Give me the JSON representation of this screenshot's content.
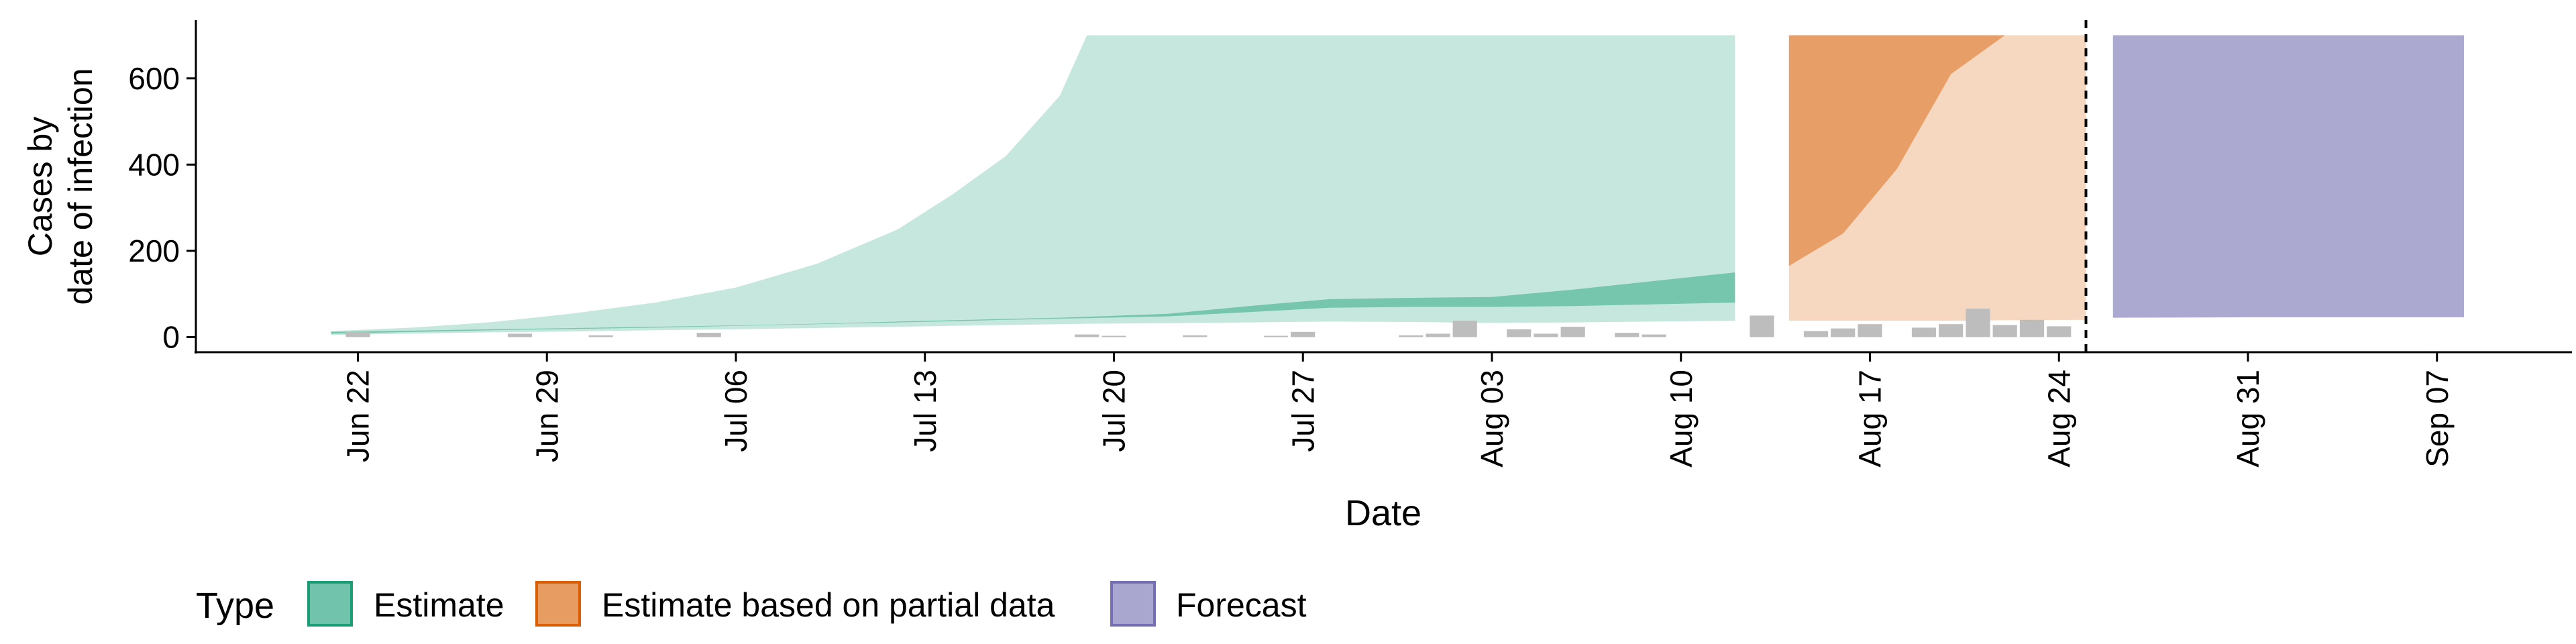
{
  "chart_data": {
    "type": "area",
    "xlabel": "Date",
    "ylabel_lines": [
      "Cases by",
      "date of infection"
    ],
    "x_ticks": [
      "Jun 22",
      "Jun 29",
      "Jul 06",
      "Jul 13",
      "Jul 20",
      "Jul 27",
      "Aug 03",
      "Aug 10",
      "Aug 17",
      "Aug 24",
      "Aug 31",
      "Sep 07"
    ],
    "x_tick_dates": [
      "2020-06-22",
      "2020-06-29",
      "2020-07-06",
      "2020-07-13",
      "2020-07-20",
      "2020-07-27",
      "2020-08-03",
      "2020-08-10",
      "2020-08-17",
      "2020-08-24",
      "2020-08-31",
      "2020-09-07"
    ],
    "xlim": [
      "2020-06-16",
      "2020-09-12"
    ],
    "y_ticks": [
      0,
      200,
      400,
      600
    ],
    "ylim": [
      -35,
      735
    ],
    "cap": 700,
    "forecast_date": "2020-08-25",
    "grid": false,
    "legend": {
      "title": "Type",
      "position": "bottom",
      "entries": [
        {
          "label": "Estimate",
          "color": "#1b9e77"
        },
        {
          "label": "Estimate based on partial data",
          "color": "#d95f02"
        },
        {
          "label": "Forecast",
          "color": "#7570b3"
        }
      ]
    },
    "series": [
      {
        "name": "Estimate",
        "color": "#1b9e77",
        "dates": [
          "2020-06-21",
          "2020-06-24",
          "2020-06-27",
          "2020-06-30",
          "2020-07-03",
          "2020-07-06",
          "2020-07-09",
          "2020-07-12",
          "2020-07-14",
          "2020-07-16",
          "2020-07-18",
          "2020-07-19",
          "2020-07-22",
          "2020-07-25",
          "2020-07-28",
          "2020-07-31",
          "2020-08-03",
          "2020-08-06",
          "2020-08-09",
          "2020-08-12"
        ],
        "lower90": [
          5,
          8,
          11,
          13,
          16,
          18,
          21,
          24,
          26,
          28,
          30,
          31,
          32,
          34,
          36,
          35,
          33,
          34,
          36,
          38
        ],
        "upper90": [
          14,
          22,
          35,
          55,
          80,
          115,
          170,
          250,
          330,
          420,
          560,
          700,
          700,
          700,
          700,
          700,
          700,
          700,
          700,
          700
        ],
        "lower50": [
          8,
          12,
          16,
          19,
          22,
          26,
          30,
          34,
          37,
          40,
          43,
          44,
          48,
          58,
          68,
          70,
          70,
          72,
          76,
          80
        ],
        "upper50": [
          12,
          15,
          18,
          21,
          24,
          27,
          31,
          36,
          39,
          42,
          45,
          47,
          54,
          72,
          88,
          91,
          93,
          110,
          130,
          150
        ]
      },
      {
        "name": "Estimate based on partial data",
        "color": "#d95f02",
        "dates": [
          "2020-08-14",
          "2020-08-16",
          "2020-08-18",
          "2020-08-20",
          "2020-08-22",
          "2020-08-25"
        ],
        "lower90": [
          38,
          38,
          38,
          38,
          39,
          40
        ],
        "upper90": [
          700,
          700,
          700,
          700,
          700,
          700
        ],
        "lower50": [
          165,
          240,
          390,
          610,
          700,
          700
        ],
        "upper50": [
          700,
          700,
          700,
          700,
          700,
          700
        ]
      },
      {
        "name": "Forecast",
        "color": "#7570b3",
        "dates": [
          "2020-08-26",
          "2020-09-01",
          "2020-09-08"
        ],
        "lower90": [
          45,
          46,
          46
        ],
        "upper90": [
          700,
          700,
          700
        ],
        "lower50": [
          45,
          46,
          46
        ],
        "upper50": [
          700,
          700,
          700
        ]
      }
    ],
    "reported_cases": [
      {
        "date": "2020-06-22",
        "value": 12
      },
      {
        "date": "2020-06-28",
        "value": 8
      },
      {
        "date": "2020-07-01",
        "value": 4
      },
      {
        "date": "2020-07-05",
        "value": 10
      },
      {
        "date": "2020-07-19",
        "value": 6
      },
      {
        "date": "2020-07-20",
        "value": 3
      },
      {
        "date": "2020-07-23",
        "value": 4
      },
      {
        "date": "2020-07-26",
        "value": 3
      },
      {
        "date": "2020-07-27",
        "value": 12
      },
      {
        "date": "2020-07-31",
        "value": 4
      },
      {
        "date": "2020-08-01",
        "value": 8
      },
      {
        "date": "2020-08-02",
        "value": 38
      },
      {
        "date": "2020-08-04",
        "value": 18
      },
      {
        "date": "2020-08-05",
        "value": 8
      },
      {
        "date": "2020-08-06",
        "value": 24
      },
      {
        "date": "2020-08-08",
        "value": 10
      },
      {
        "date": "2020-08-09",
        "value": 6
      },
      {
        "date": "2020-08-13",
        "value": 50
      },
      {
        "date": "2020-08-15",
        "value": 14
      },
      {
        "date": "2020-08-16",
        "value": 20
      },
      {
        "date": "2020-08-17",
        "value": 30
      },
      {
        "date": "2020-08-19",
        "value": 22
      },
      {
        "date": "2020-08-20",
        "value": 30
      },
      {
        "date": "2020-08-21",
        "value": 66
      },
      {
        "date": "2020-08-22",
        "value": 28
      },
      {
        "date": "2020-08-23",
        "value": 40
      },
      {
        "date": "2020-08-24",
        "value": 25
      }
    ]
  }
}
